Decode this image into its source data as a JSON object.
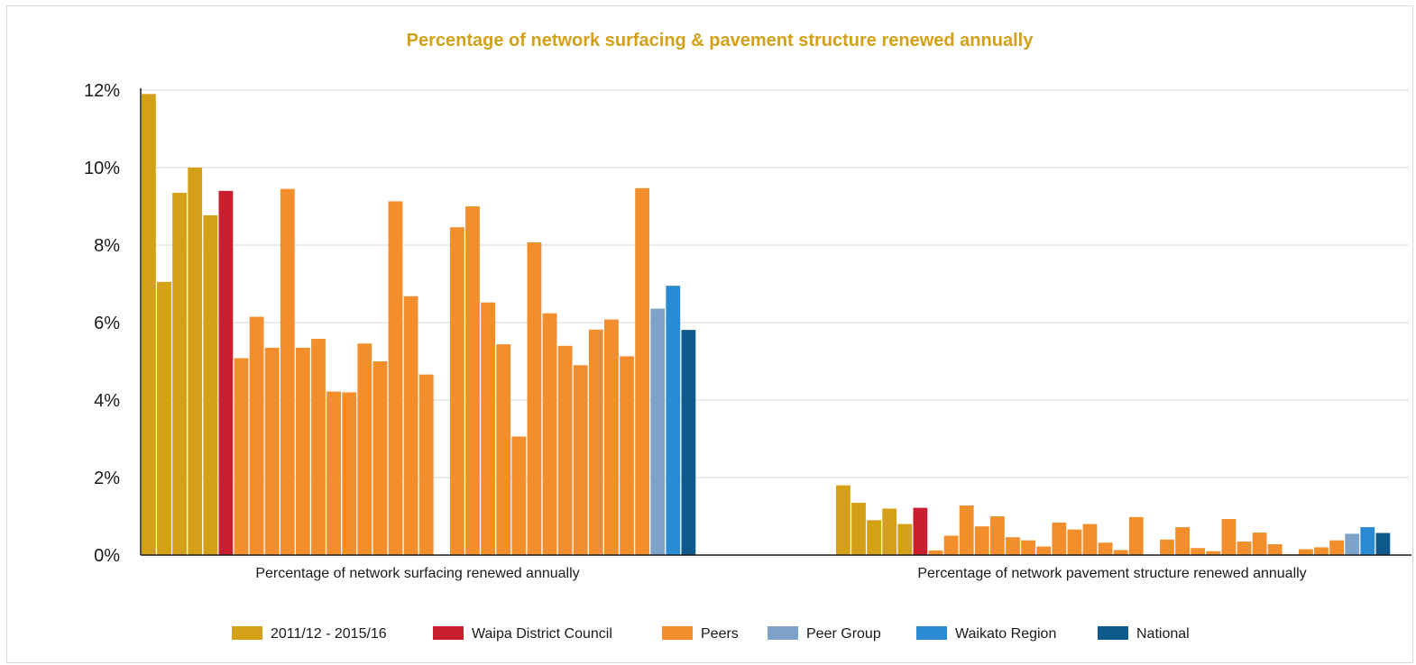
{
  "chart_data": {
    "type": "bar",
    "title": "Percentage of network surfacing & pavement structure renewed annually",
    "title_color": "#d4a017",
    "y_ticks": [
      "0%",
      "2%",
      "4%",
      "6%",
      "8%",
      "10%",
      "12%"
    ],
    "ylim": [
      0,
      12
    ],
    "grid": true,
    "legend_position": "bottom",
    "categories": [
      "Percentage of network surfacing renewed annually",
      "Percentage of network pavement structure renewed annually"
    ],
    "series_styles": {
      "2011/12 - 2015/16": "#d4a017",
      "Waipa District Council": "#c8202f",
      "Peers": "#f28e2b",
      "Peer Group": "#7ea3c8",
      "Waikato Region": "#2a8ad4",
      "National": "#0f5a8c"
    },
    "legend": [
      {
        "name": "2011/12 - 2015/16",
        "color": "#d4a017"
      },
      {
        "name": "Waipa District Council",
        "color": "#c8202f"
      },
      {
        "name": "Peers",
        "color": "#f28e2b"
      },
      {
        "name": "Peer Group",
        "color": "#7ea3c8"
      },
      {
        "name": "Waikato Region",
        "color": "#2a8ad4"
      },
      {
        "name": "National",
        "color": "#0f5a8c"
      }
    ],
    "groups": [
      {
        "category": "Percentage of network surfacing renewed annually",
        "bars": [
          {
            "series": "2011/12 - 2015/16",
            "value": 11.9
          },
          {
            "series": "2011/12 - 2015/16",
            "value": 7.05
          },
          {
            "series": "2011/12 - 2015/16",
            "value": 9.35
          },
          {
            "series": "2011/12 - 2015/16",
            "value": 10.0
          },
          {
            "series": "2011/12 - 2015/16",
            "value": 8.77
          },
          {
            "series": "Waipa District Council",
            "value": 9.4
          },
          {
            "series": "Peers",
            "value": 5.08
          },
          {
            "series": "Peers",
            "value": 6.15
          },
          {
            "series": "Peers",
            "value": 5.35
          },
          {
            "series": "Peers",
            "value": 9.45
          },
          {
            "series": "Peers",
            "value": 5.35
          },
          {
            "series": "Peers",
            "value": 5.58
          },
          {
            "series": "Peers",
            "value": 4.22
          },
          {
            "series": "Peers",
            "value": 4.2
          },
          {
            "series": "Peers",
            "value": 5.46
          },
          {
            "series": "Peers",
            "value": 5.0
          },
          {
            "series": "Peers",
            "value": 9.13
          },
          {
            "series": "Peers",
            "value": 6.68
          },
          {
            "series": "Peers",
            "value": 4.66
          },
          {
            "series": "Peers",
            "value": 0
          },
          {
            "series": "Peers",
            "value": 8.46
          },
          {
            "series": "Peers",
            "value": 9.0
          },
          {
            "series": "Peers",
            "value": 6.52
          },
          {
            "series": "Peers",
            "value": 5.44
          },
          {
            "series": "Peers",
            "value": 3.06
          },
          {
            "series": "Peers",
            "value": 8.07
          },
          {
            "series": "Peers",
            "value": 6.24
          },
          {
            "series": "Peers",
            "value": 5.4
          },
          {
            "series": "Peers",
            "value": 4.9
          },
          {
            "series": "Peers",
            "value": 5.82
          },
          {
            "series": "Peers",
            "value": 6.08
          },
          {
            "series": "Peers",
            "value": 5.13
          },
          {
            "series": "Peers",
            "value": 9.47
          },
          {
            "series": "Peer Group",
            "value": 6.36
          },
          {
            "series": "Waikato Region",
            "value": 6.95
          },
          {
            "series": "National",
            "value": 5.81
          }
        ]
      },
      {
        "category": "Percentage of network pavement structure renewed annually",
        "bars": [
          {
            "series": "2011/12 - 2015/16",
            "value": 1.8
          },
          {
            "series": "2011/12 - 2015/16",
            "value": 1.35
          },
          {
            "series": "2011/12 - 2015/16",
            "value": 0.9
          },
          {
            "series": "2011/12 - 2015/16",
            "value": 1.2
          },
          {
            "series": "2011/12 - 2015/16",
            "value": 0.8
          },
          {
            "series": "Waipa District Council",
            "value": 1.22
          },
          {
            "series": "Peers",
            "value": 0.12
          },
          {
            "series": "Peers",
            "value": 0.5
          },
          {
            "series": "Peers",
            "value": 1.28
          },
          {
            "series": "Peers",
            "value": 0.74
          },
          {
            "series": "Peers",
            "value": 1.0
          },
          {
            "series": "Peers",
            "value": 0.46
          },
          {
            "series": "Peers",
            "value": 0.38
          },
          {
            "series": "Peers",
            "value": 0.22
          },
          {
            "series": "Peers",
            "value": 0.84
          },
          {
            "series": "Peers",
            "value": 0.66
          },
          {
            "series": "Peers",
            "value": 0.8
          },
          {
            "series": "Peers",
            "value": 0.32
          },
          {
            "series": "Peers",
            "value": 0.13
          },
          {
            "series": "Peers",
            "value": 0.98
          },
          {
            "series": "Peers",
            "value": 0
          },
          {
            "series": "Peers",
            "value": 0.4
          },
          {
            "series": "Peers",
            "value": 0.72
          },
          {
            "series": "Peers",
            "value": 0.18
          },
          {
            "series": "Peers",
            "value": 0.1
          },
          {
            "series": "Peers",
            "value": 0.93
          },
          {
            "series": "Peers",
            "value": 0.35
          },
          {
            "series": "Peers",
            "value": 0.58
          },
          {
            "series": "Peers",
            "value": 0.28
          },
          {
            "series": "Peers",
            "value": 0.02
          },
          {
            "series": "Peers",
            "value": 0.15
          },
          {
            "series": "Peers",
            "value": 0.2
          },
          {
            "series": "Peers",
            "value": 0.38
          },
          {
            "series": "Peer Group",
            "value": 0.55
          },
          {
            "series": "Waikato Region",
            "value": 0.72
          },
          {
            "series": "National",
            "value": 0.57
          }
        ]
      }
    ]
  }
}
